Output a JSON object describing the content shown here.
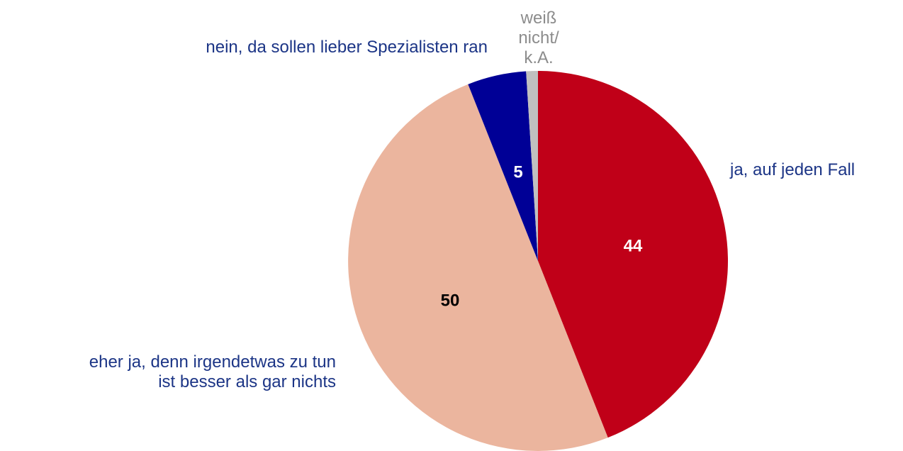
{
  "chart_data": {
    "type": "pie",
    "categories": [
      "ja, auf jeden Fall",
      "eher ja, denn irgendetwas zu tun\nist besser als gar nichts",
      "nein, da sollen lieber Spezialisten ran",
      "weiß nicht/\nk.A."
    ],
    "values": [
      44,
      50,
      5,
      1
    ],
    "value_labels": [
      "44",
      "50",
      "5",
      null
    ],
    "colors": [
      "#c00018",
      "#ebb59e",
      "#000096",
      "#c0c0c0"
    ],
    "label_colors": [
      "#ffffff",
      "#000000",
      "#ffffff",
      "#000000"
    ],
    "category_colors": [
      "#1c3586",
      "#1c3586",
      "#1c3586",
      "#8c8c8c"
    ]
  }
}
